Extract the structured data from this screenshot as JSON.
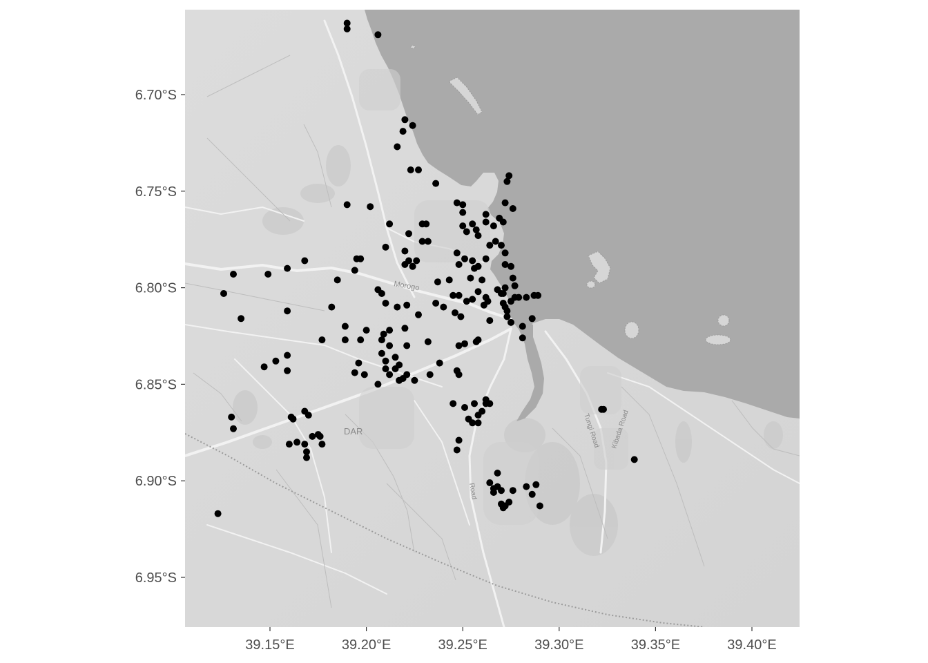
{
  "chart_data": {
    "type": "scatter",
    "title": "",
    "xlabel": "",
    "ylabel": "",
    "xlim": [
      39.12,
      39.44
    ],
    "ylim": [
      -6.975,
      -6.655
    ],
    "grid": false,
    "legend": "none",
    "basemap": "greyscale terrain/streets tile map with water in dark grey",
    "map_labels": [
      "Morogo",
      "DAR",
      "Tungi Road",
      "Kibada Road",
      "Road"
    ],
    "x_ticks": [
      {
        "value": 39.15,
        "label": "39.15°E"
      },
      {
        "value": 39.2,
        "label": "39.20°E"
      },
      {
        "value": 39.25,
        "label": "39.25°E"
      },
      {
        "value": 39.3,
        "label": "39.30°E"
      },
      {
        "value": 39.35,
        "label": "39.35°E"
      },
      {
        "value": 39.4,
        "label": "39.40°E"
      }
    ],
    "y_ticks": [
      {
        "value": -6.7,
        "label": "6.70°S"
      },
      {
        "value": -6.75,
        "label": "6.75°S"
      },
      {
        "value": -6.8,
        "label": "6.80°S"
      },
      {
        "value": -6.85,
        "label": "6.85°S"
      },
      {
        "value": -6.9,
        "label": "6.90°S"
      },
      {
        "value": -6.95,
        "label": "6.95°S"
      }
    ],
    "series": [
      {
        "point_color": "#000000",
        "points": [
          [
            39.19,
            -6.663
          ],
          [
            39.19,
            -6.666
          ],
          [
            39.206,
            -6.669
          ],
          [
            39.22,
            -6.713
          ],
          [
            39.224,
            -6.716
          ],
          [
            39.219,
            -6.719
          ],
          [
            39.216,
            -6.727
          ],
          [
            39.223,
            -6.739
          ],
          [
            39.227,
            -6.739
          ],
          [
            39.236,
            -6.746
          ],
          [
            39.274,
            -6.742
          ],
          [
            39.273,
            -6.745
          ],
          [
            39.272,
            -6.756
          ],
          [
            39.276,
            -6.759
          ],
          [
            39.19,
            -6.757
          ],
          [
            39.202,
            -6.758
          ],
          [
            39.247,
            -6.756
          ],
          [
            39.25,
            -6.757
          ],
          [
            39.25,
            -6.761
          ],
          [
            39.255,
            -6.767
          ],
          [
            39.262,
            -6.762
          ],
          [
            39.262,
            -6.766
          ],
          [
            39.266,
            -6.768
          ],
          [
            39.269,
            -6.764
          ],
          [
            39.271,
            -6.766
          ],
          [
            39.25,
            -6.768
          ],
          [
            39.252,
            -6.771
          ],
          [
            39.258,
            -6.773
          ],
          [
            39.257,
            -6.77
          ],
          [
            39.264,
            -6.778
          ],
          [
            39.267,
            -6.776
          ],
          [
            39.27,
            -6.778
          ],
          [
            39.272,
            -6.782
          ],
          [
            39.212,
            -6.767
          ],
          [
            39.222,
            -6.772
          ],
          [
            39.229,
            -6.767
          ],
          [
            39.231,
            -6.767
          ],
          [
            39.229,
            -6.776
          ],
          [
            39.232,
            -6.776
          ],
          [
            39.21,
            -6.779
          ],
          [
            39.22,
            -6.781
          ],
          [
            39.222,
            -6.786
          ],
          [
            39.224,
            -6.789
          ],
          [
            39.226,
            -6.786
          ],
          [
            39.22,
            -6.788
          ],
          [
            39.247,
            -6.782
          ],
          [
            39.251,
            -6.785
          ],
          [
            39.255,
            -6.786
          ],
          [
            39.256,
            -6.79
          ],
          [
            39.258,
            -6.789
          ],
          [
            39.248,
            -6.788
          ],
          [
            39.262,
            -6.785
          ],
          [
            39.254,
            -6.795
          ],
          [
            39.26,
            -6.796
          ],
          [
            39.243,
            -6.796
          ],
          [
            39.272,
            -6.788
          ],
          [
            39.275,
            -6.789
          ],
          [
            39.276,
            -6.795
          ],
          [
            39.195,
            -6.785
          ],
          [
            39.197,
            -6.785
          ],
          [
            39.194,
            -6.791
          ],
          [
            39.185,
            -6.796
          ],
          [
            39.159,
            -6.79
          ],
          [
            39.149,
            -6.793
          ],
          [
            39.131,
            -6.793
          ],
          [
            39.168,
            -6.786
          ],
          [
            39.126,
            -6.803
          ],
          [
            39.206,
            -6.801
          ],
          [
            39.208,
            -6.803
          ],
          [
            39.237,
            -6.797
          ],
          [
            39.236,
            -6.808
          ],
          [
            39.24,
            -6.81
          ],
          [
            39.245,
            -6.804
          ],
          [
            39.248,
            -6.804
          ],
          [
            39.252,
            -6.807
          ],
          [
            39.255,
            -6.806
          ],
          [
            39.258,
            -6.802
          ],
          [
            39.262,
            -6.805
          ],
          [
            39.261,
            -6.809
          ],
          [
            39.263,
            -6.807
          ],
          [
            39.268,
            -6.801
          ],
          [
            39.27,
            -6.803
          ],
          [
            39.271,
            -6.808
          ],
          [
            39.272,
            -6.81
          ],
          [
            39.273,
            -6.812
          ],
          [
            39.275,
            -6.807
          ],
          [
            39.277,
            -6.805
          ],
          [
            39.277,
            -6.799
          ],
          [
            39.279,
            -6.805
          ],
          [
            39.283,
            -6.805
          ],
          [
            39.287,
            -6.804
          ],
          [
            39.289,
            -6.804
          ],
          [
            39.272,
            -6.8
          ],
          [
            39.271,
            -6.803
          ],
          [
            39.21,
            -6.808
          ],
          [
            39.216,
            -6.81
          ],
          [
            39.221,
            -6.809
          ],
          [
            39.135,
            -6.816
          ],
          [
            39.159,
            -6.812
          ],
          [
            39.182,
            -6.81
          ],
          [
            39.227,
            -6.814
          ],
          [
            39.246,
            -6.813
          ],
          [
            39.249,
            -6.815
          ],
          [
            39.273,
            -6.815
          ],
          [
            39.275,
            -6.818
          ],
          [
            39.281,
            -6.82
          ],
          [
            39.286,
            -6.816
          ],
          [
            39.264,
            -6.817
          ],
          [
            39.189,
            -6.82
          ],
          [
            39.2,
            -6.822
          ],
          [
            39.209,
            -6.824
          ],
          [
            39.212,
            -6.822
          ],
          [
            39.22,
            -6.821
          ],
          [
            39.177,
            -6.827
          ],
          [
            39.189,
            -6.827
          ],
          [
            39.197,
            -6.827
          ],
          [
            39.208,
            -6.827
          ],
          [
            39.212,
            -6.83
          ],
          [
            39.221,
            -6.83
          ],
          [
            39.232,
            -6.828
          ],
          [
            39.248,
            -6.83
          ],
          [
            39.251,
            -6.829
          ],
          [
            39.257,
            -6.828
          ],
          [
            39.258,
            -6.827
          ],
          [
            39.281,
            -6.826
          ],
          [
            39.208,
            -6.834
          ],
          [
            39.21,
            -6.838
          ],
          [
            39.215,
            -6.836
          ],
          [
            39.217,
            -6.84
          ],
          [
            39.159,
            -6.835
          ],
          [
            39.153,
            -6.838
          ],
          [
            39.147,
            -6.841
          ],
          [
            39.159,
            -6.843
          ],
          [
            39.196,
            -6.839
          ],
          [
            39.21,
            -6.842
          ],
          [
            39.221,
            -6.845
          ],
          [
            39.219,
            -6.847
          ],
          [
            39.217,
            -6.848
          ],
          [
            39.212,
            -6.845
          ],
          [
            39.215,
            -6.842
          ],
          [
            39.194,
            -6.844
          ],
          [
            39.199,
            -6.845
          ],
          [
            39.238,
            -6.839
          ],
          [
            39.247,
            -6.843
          ],
          [
            39.248,
            -6.845
          ],
          [
            39.233,
            -6.845
          ],
          [
            39.225,
            -6.848
          ],
          [
            39.206,
            -6.85
          ],
          [
            39.262,
            -6.858
          ],
          [
            39.264,
            -6.86
          ],
          [
            39.256,
            -6.86
          ],
          [
            39.253,
            -6.868
          ],
          [
            39.258,
            -6.866
          ],
          [
            39.26,
            -6.864
          ],
          [
            39.255,
            -6.87
          ],
          [
            39.258,
            -6.87
          ],
          [
            39.245,
            -6.86
          ],
          [
            39.251,
            -6.862
          ],
          [
            39.262,
            -6.86
          ],
          [
            39.168,
            -6.864
          ],
          [
            39.17,
            -6.866
          ],
          [
            39.161,
            -6.867
          ],
          [
            39.162,
            -6.868
          ],
          [
            39.13,
            -6.867
          ],
          [
            39.131,
            -6.873
          ],
          [
            39.172,
            -6.877
          ],
          [
            39.175,
            -6.876
          ],
          [
            39.176,
            -6.877
          ],
          [
            39.177,
            -6.881
          ],
          [
            39.168,
            -6.881
          ],
          [
            39.169,
            -6.885
          ],
          [
            39.169,
            -6.888
          ],
          [
            39.16,
            -6.881
          ],
          [
            39.164,
            -6.88
          ],
          [
            39.248,
            -6.879
          ],
          [
            39.247,
            -6.884
          ],
          [
            39.322,
            -6.863
          ],
          [
            39.323,
            -6.863
          ],
          [
            39.339,
            -6.889
          ],
          [
            39.268,
            -6.896
          ],
          [
            39.264,
            -6.901
          ],
          [
            39.266,
            -6.904
          ],
          [
            39.268,
            -6.903
          ],
          [
            39.27,
            -6.905
          ],
          [
            39.266,
            -6.906
          ],
          [
            39.276,
            -6.905
          ],
          [
            39.283,
            -6.903
          ],
          [
            39.288,
            -6.902
          ],
          [
            39.286,
            -6.907
          ],
          [
            39.29,
            -6.913
          ],
          [
            39.27,
            -6.912
          ],
          [
            39.271,
            -6.914
          ],
          [
            39.272,
            -6.913
          ],
          [
            39.274,
            -6.911
          ],
          [
            39.123,
            -6.917
          ]
        ]
      }
    ]
  }
}
